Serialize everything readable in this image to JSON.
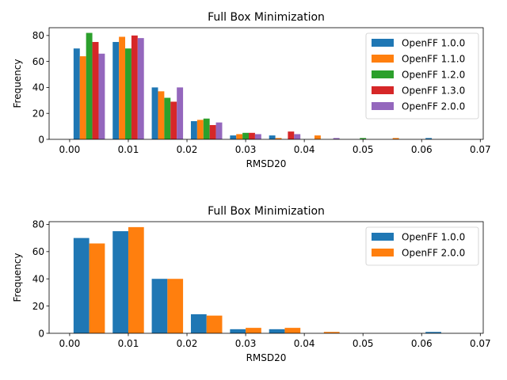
{
  "chart_data": [
    {
      "type": "bar",
      "title": "Full Box Minimization",
      "xlabel": "RMSD20",
      "ylabel": "Frequency",
      "xlim": [
        -0.0035,
        0.0705
      ],
      "ylim": [
        0,
        86
      ],
      "xticks": [
        0.0,
        0.01,
        0.02,
        0.03,
        0.04,
        0.05,
        0.06,
        0.07
      ],
      "xtick_labels": [
        "0.00",
        "0.01",
        "0.02",
        "0.03",
        "0.04",
        "0.05",
        "0.06",
        "0.07"
      ],
      "yticks": [
        0,
        20,
        40,
        60,
        80
      ],
      "ytick_labels": [
        "0",
        "20",
        "40",
        "60",
        "80"
      ],
      "bin_edges": [
        0.0,
        0.00667,
        0.01333,
        0.02,
        0.02667,
        0.03333,
        0.04,
        0.04667,
        0.05333,
        0.06,
        0.06667
      ],
      "legend_position": "top-right",
      "series": [
        {
          "name": "OpenFF 1.0.0",
          "color": "#1f77b4",
          "values": [
            70,
            75,
            40,
            14,
            3,
            3,
            0,
            0,
            0,
            1
          ]
        },
        {
          "name": "OpenFF 1.1.0",
          "color": "#ff7f0e",
          "values": [
            64,
            79,
            37,
            15,
            4,
            1,
            3,
            0,
            1,
            0
          ]
        },
        {
          "name": "OpenFF 1.2.0",
          "color": "#2ca02c",
          "values": [
            82,
            70,
            32,
            16,
            5,
            0,
            0,
            1,
            0,
            0
          ]
        },
        {
          "name": "OpenFF 1.3.0",
          "color": "#d62728",
          "values": [
            75,
            80,
            29,
            11,
            5,
            6,
            0,
            0,
            0,
            0
          ]
        },
        {
          "name": "OpenFF 2.0.0",
          "color": "#9467bd",
          "values": [
            66,
            78,
            40,
            13,
            4,
            4,
            1,
            0,
            0,
            0
          ]
        }
      ]
    },
    {
      "type": "bar",
      "title": "Full Box Minimization",
      "xlabel": "RMSD20",
      "ylabel": "Frequency",
      "xlim": [
        -0.0035,
        0.0705
      ],
      "ylim": [
        0,
        82
      ],
      "xticks": [
        0.0,
        0.01,
        0.02,
        0.03,
        0.04,
        0.05,
        0.06,
        0.07
      ],
      "xtick_labels": [
        "0.00",
        "0.01",
        "0.02",
        "0.03",
        "0.04",
        "0.05",
        "0.06",
        "0.07"
      ],
      "yticks": [
        0,
        20,
        40,
        60,
        80
      ],
      "ytick_labels": [
        "0",
        "20",
        "40",
        "60",
        "80"
      ],
      "bin_edges": [
        0.0,
        0.00667,
        0.01333,
        0.02,
        0.02667,
        0.03333,
        0.04,
        0.04667,
        0.05333,
        0.06,
        0.06667
      ],
      "legend_position": "top-right",
      "series": [
        {
          "name": "OpenFF 1.0.0",
          "color": "#1f77b4",
          "values": [
            70,
            75,
            40,
            14,
            3,
            3,
            0,
            0,
            0,
            1
          ]
        },
        {
          "name": "OpenFF 2.0.0",
          "color": "#ff7f0e",
          "values": [
            66,
            78,
            40,
            13,
            4,
            4,
            1,
            0,
            0,
            0
          ]
        }
      ]
    }
  ]
}
